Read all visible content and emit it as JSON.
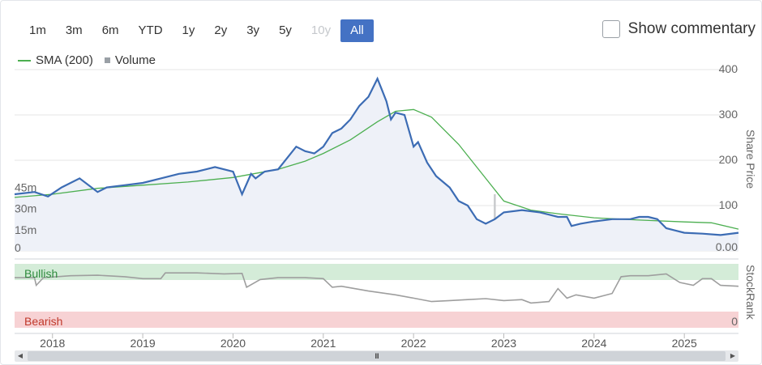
{
  "range_buttons": [
    {
      "label": "1m",
      "state": "normal"
    },
    {
      "label": "3m",
      "state": "normal"
    },
    {
      "label": "6m",
      "state": "normal"
    },
    {
      "label": "YTD",
      "state": "normal"
    },
    {
      "label": "1y",
      "state": "normal"
    },
    {
      "label": "2y",
      "state": "normal"
    },
    {
      "label": "3y",
      "state": "normal"
    },
    {
      "label": "5y",
      "state": "normal"
    },
    {
      "label": "10y",
      "state": "disabled"
    },
    {
      "label": "All",
      "state": "active"
    }
  ],
  "commentary": {
    "label": "Show commentary",
    "checked": false
  },
  "legend": {
    "sma_label": "SMA (200)",
    "volume_label": "Volume"
  },
  "colors": {
    "price": "#3c6cb4",
    "sma": "#4caf50",
    "volume": "#c7c9cc",
    "stockrank": "#9e9e9e",
    "bullish_band": "#d4ecd8",
    "bearish_band": "#f7d2d4",
    "bullish_text": "#2e8b3d",
    "bearish_text": "#c0392b",
    "active_button": "#4472c4"
  },
  "chart_data": {
    "type": "line",
    "x_ticks": [
      "2018",
      "2019",
      "2020",
      "2021",
      "2022",
      "2023",
      "2024",
      "2025"
    ],
    "x_range": [
      2017.58,
      2025.6
    ],
    "share_price_axis": {
      "label": "Share Price",
      "range": [
        0,
        400
      ],
      "ticks": [
        100,
        200,
        300,
        400
      ],
      "zero_label": "0.00"
    },
    "volume_axis": {
      "range": [
        0,
        60
      ],
      "ticks": [
        "0",
        "15m",
        "30m",
        "45m"
      ],
      "tick_values": [
        0,
        15,
        30,
        45
      ]
    },
    "stockrank_axis": {
      "label": "StockRank",
      "range": [
        0,
        100
      ],
      "zero_label": "0"
    },
    "bands": {
      "bullish_label": "Bullish",
      "bearish_label": "Bearish"
    },
    "series": [
      {
        "name": "Share Price",
        "x": [
          2017.58,
          2017.8,
          2017.95,
          2018.1,
          2018.3,
          2018.5,
          2018.6,
          2018.8,
          2019.0,
          2019.2,
          2019.4,
          2019.6,
          2019.8,
          2020.0,
          2020.1,
          2020.2,
          2020.25,
          2020.35,
          2020.5,
          2020.7,
          2020.8,
          2020.9,
          2021.0,
          2021.1,
          2021.2,
          2021.3,
          2021.4,
          2021.5,
          2021.6,
          2021.65,
          2021.7,
          2021.75,
          2021.8,
          2021.9,
          2022.0,
          2022.05,
          2022.15,
          2022.25,
          2022.4,
          2022.5,
          2022.6,
          2022.7,
          2022.8,
          2022.9,
          2023.0,
          2023.2,
          2023.4,
          2023.5,
          2023.6,
          2023.7,
          2023.75,
          2023.85,
          2024.0,
          2024.2,
          2024.4,
          2024.5,
          2024.6,
          2024.7,
          2024.8,
          2024.9,
          2025.0,
          2025.2,
          2025.4,
          2025.6
        ],
        "y": [
          125,
          130,
          120,
          140,
          160,
          130,
          140,
          145,
          150,
          160,
          170,
          175,
          185,
          175,
          125,
          170,
          160,
          175,
          180,
          230,
          220,
          215,
          230,
          260,
          270,
          290,
          320,
          340,
          380,
          355,
          330,
          290,
          305,
          300,
          230,
          240,
          195,
          165,
          140,
          110,
          100,
          70,
          60,
          70,
          85,
          90,
          85,
          80,
          75,
          75,
          55,
          60,
          65,
          70,
          70,
          75,
          75,
          70,
          50,
          45,
          40,
          38,
          35,
          40
        ]
      },
      {
        "name": "SMA (200)",
        "x": [
          2017.58,
          2018.0,
          2018.5,
          2019.0,
          2019.5,
          2020.0,
          2020.5,
          2020.8,
          2021.0,
          2021.3,
          2021.6,
          2021.8,
          2022.0,
          2022.2,
          2022.5,
          2022.8,
          2023.0,
          2023.3,
          2023.6,
          2024.0,
          2024.5,
          2025.0,
          2025.3,
          2025.6
        ],
        "y": [
          118,
          125,
          138,
          145,
          152,
          162,
          180,
          198,
          215,
          245,
          285,
          308,
          312,
          295,
          235,
          160,
          110,
          90,
          82,
          73,
          68,
          64,
          62,
          48
        ]
      },
      {
        "name": "StockRank",
        "x": [
          2017.58,
          2017.8,
          2017.82,
          2017.9,
          2018.2,
          2018.5,
          2018.8,
          2019.0,
          2019.2,
          2019.25,
          2019.6,
          2019.9,
          2020.1,
          2020.15,
          2020.3,
          2020.5,
          2020.8,
          2021.0,
          2021.1,
          2021.2,
          2021.5,
          2021.8,
          2022.0,
          2022.2,
          2022.4,
          2022.6,
          2022.8,
          2023.0,
          2023.2,
          2023.3,
          2023.5,
          2023.6,
          2023.7,
          2023.8,
          2024.0,
          2024.2,
          2024.3,
          2024.4,
          2024.6,
          2024.8,
          2024.95,
          2025.1,
          2025.2,
          2025.3,
          2025.4,
          2025.6
        ],
        "y": [
          88,
          88,
          72,
          88,
          92,
          93,
          90,
          86,
          86,
          98,
          98,
          96,
          97,
          68,
          84,
          88,
          88,
          86,
          68,
          70,
          60,
          52,
          45,
          38,
          40,
          42,
          44,
          40,
          42,
          35,
          38,
          65,
          45,
          52,
          45,
          55,
          90,
          92,
          92,
          96,
          78,
          72,
          86,
          86,
          72,
          70
        ]
      }
    ],
    "volume": {
      "x": [
        2017.6,
        2017.7,
        2017.8,
        2017.9,
        2018.0,
        2018.1,
        2018.2,
        2018.4,
        2018.6,
        2018.8,
        2019.0,
        2019.2,
        2019.4,
        2019.6,
        2019.8,
        2020.0,
        2020.2,
        2020.4,
        2020.6,
        2020.8,
        2021.0,
        2021.2,
        2021.4,
        2021.6,
        2021.8,
        2022.0,
        2022.2,
        2022.4,
        2022.6,
        2022.8,
        2022.9,
        2023.0,
        2023.2,
        2023.4,
        2023.6,
        2023.75,
        2023.9,
        2024.1,
        2024.3,
        2024.5,
        2024.7,
        2024.9,
        2025.1,
        2025.3,
        2025.5
      ],
      "values": [
        18,
        4,
        5,
        3,
        4,
        30,
        3,
        4,
        3,
        5,
        3,
        4,
        3,
        4,
        3,
        5,
        6,
        4,
        3,
        4,
        5,
        4,
        6,
        5,
        4,
        5,
        4,
        6,
        4,
        5,
        40,
        6,
        4,
        5,
        4,
        12,
        4,
        5,
        4,
        4,
        3,
        4,
        5,
        3,
        4
      ]
    },
    "grid": true
  }
}
